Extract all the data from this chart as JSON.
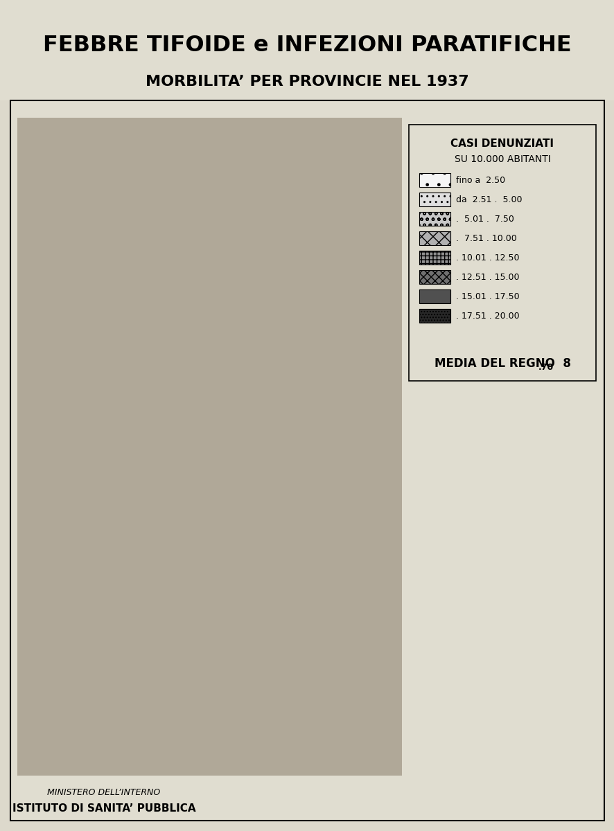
{
  "title_line1": "FEBBRE TIFOIDE e INFEZIONI PARATIFICHE",
  "title_line2": "MORBILITA’ PER PROVINCIE NEL 1937",
  "legend_title_line1": "CASI DENUNZIATI",
  "legend_title_line2": "SU 10.000 ABITANTI",
  "legend_entries": [
    {
      "label": "fino a  2.50",
      "hatch": "......",
      "facecolor": "#f0f0f0"
    },
    {
      "label": "da  2.51 .  5.00",
      "hatch": "....",
      "facecolor": "#d8d8d8"
    },
    {
      "label": ".  5.01 .  7.50",
      "hatch": "ooo",
      "facecolor": "#c0c0c0"
    },
    {
      "label": ".  7.51 . 10.00",
      "hatch": "xxx",
      "facecolor": "#a8a8a8"
    },
    {
      "label": ". 10.01 . 12.50",
      "hatch": "+++",
      "facecolor": "#888888"
    },
    {
      "label": ". 12.51 . 15.00",
      "hatch": "xxx",
      "facecolor": "#686868"
    },
    {
      "label": ". 15.01 . 17.50",
      "hatch": "---",
      "facecolor": "#484848"
    },
    {
      "label": ". 17.51 . 20.00",
      "hatch": "...",
      "facecolor": "#202020"
    }
  ],
  "media_label": "MEDIA DEL REGNO 8",
  "media_label2": ".70",
  "footer_line1": "MINISTERO DELL’INTERNO",
  "footer_line2": "ISTITUTO DI SANITA’ PUBBLICA",
  "bg_color": "#e8e4d8",
  "border_color": "#222222",
  "text_color": "#111111"
}
